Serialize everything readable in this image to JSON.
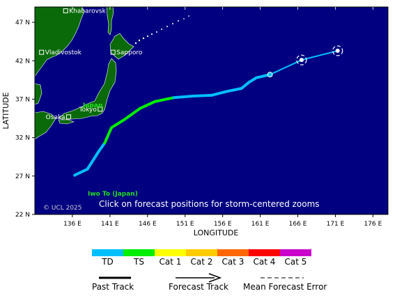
{
  "map": {
    "lon_range": [
      131,
      178
    ],
    "lat_range": [
      22,
      49
    ],
    "lon_ticks": [
      136,
      141,
      146,
      151,
      156,
      161,
      166,
      171,
      176
    ],
    "lon_tick_labels": [
      "136 E",
      "141 E",
      "146 E",
      "151 E",
      "156 E",
      "161 E",
      "166 E",
      "171 E",
      "176 E"
    ],
    "lat_ticks": [
      22,
      27,
      32,
      37,
      42,
      47
    ],
    "lat_tick_labels": [
      "22 N",
      "27 N",
      "32 N",
      "37 N",
      "42 N",
      "47 N"
    ],
    "xlabel": "LONGITUDE",
    "ylabel": "LATITUDE",
    "ocean_color": "#000080",
    "land_color": "#0a6a0a",
    "note": "Click on forecast positions for storm-centered zooms",
    "copyright": "© UCL 2025",
    "country_label": "Japan",
    "island_label": "Iwo To (Japan)",
    "cities": [
      {
        "name": "Khabarovsk",
        "lon": 135.1,
        "lat": 48.5
      },
      {
        "name": "Vladivostok",
        "lon": 131.9,
        "lat": 43.1
      },
      {
        "name": "Sapporo",
        "lon": 141.4,
        "lat": 43.1
      },
      {
        "name": "Tokyo",
        "lon": 139.7,
        "lat": 35.7
      },
      {
        "name": "Osaka",
        "lon": 135.5,
        "lat": 34.7
      }
    ]
  },
  "track": {
    "past": [
      {
        "lon": 136.3,
        "lat": 27.1,
        "cat": "TD"
      },
      {
        "lon": 138.0,
        "lat": 27.9,
        "cat": "TD"
      },
      {
        "lon": 139.5,
        "lat": 30.2,
        "cat": "TD"
      },
      {
        "lon": 140.3,
        "lat": 31.3,
        "cat": "TD"
      },
      {
        "lon": 141.2,
        "lat": 33.3,
        "cat": "TS"
      },
      {
        "lon": 143.0,
        "lat": 34.4,
        "cat": "TS"
      },
      {
        "lon": 145.0,
        "lat": 35.8,
        "cat": "TS"
      },
      {
        "lon": 147.0,
        "lat": 36.7,
        "cat": "TS"
      },
      {
        "lon": 149.5,
        "lat": 37.2,
        "cat": "TS"
      },
      {
        "lon": 152.0,
        "lat": 37.4,
        "cat": "TD"
      },
      {
        "lon": 154.5,
        "lat": 37.5,
        "cat": "TD"
      },
      {
        "lon": 156.5,
        "lat": 38.0,
        "cat": "TD"
      },
      {
        "lon": 158.5,
        "lat": 38.4,
        "cat": "TD"
      },
      {
        "lon": 159.5,
        "lat": 39.2,
        "cat": "TD"
      },
      {
        "lon": 160.5,
        "lat": 39.8,
        "cat": "TD"
      },
      {
        "lon": 162.3,
        "lat": 40.2,
        "cat": "TD"
      }
    ],
    "forecast": [
      {
        "lon": 162.3,
        "lat": 40.2,
        "cat": "TD"
      },
      {
        "lon": 166.5,
        "lat": 42.1,
        "cat": "TD"
      },
      {
        "lon": 171.3,
        "lat": 43.3,
        "cat": "TD"
      }
    ],
    "forecast_error_points": [
      {
        "lon": 166.5,
        "lat": 42.1
      },
      {
        "lon": 171.3,
        "lat": 43.3
      }
    ]
  },
  "legend": {
    "categories": [
      {
        "label": "TD",
        "color": "#00bfff"
      },
      {
        "label": "TS",
        "color": "#00ee00"
      },
      {
        "label": "Cat 1",
        "color": "#ffff00"
      },
      {
        "label": "Cat 2",
        "color": "#ffcc00"
      },
      {
        "label": "Cat 3",
        "color": "#ff6600"
      },
      {
        "label": "Cat 4",
        "color": "#ff0000"
      },
      {
        "label": "Cat 5",
        "color": "#cc00cc"
      }
    ],
    "past_track": "Past Track",
    "forecast_track": "Forecast Track",
    "mean_error": "Mean Forecast Error"
  }
}
